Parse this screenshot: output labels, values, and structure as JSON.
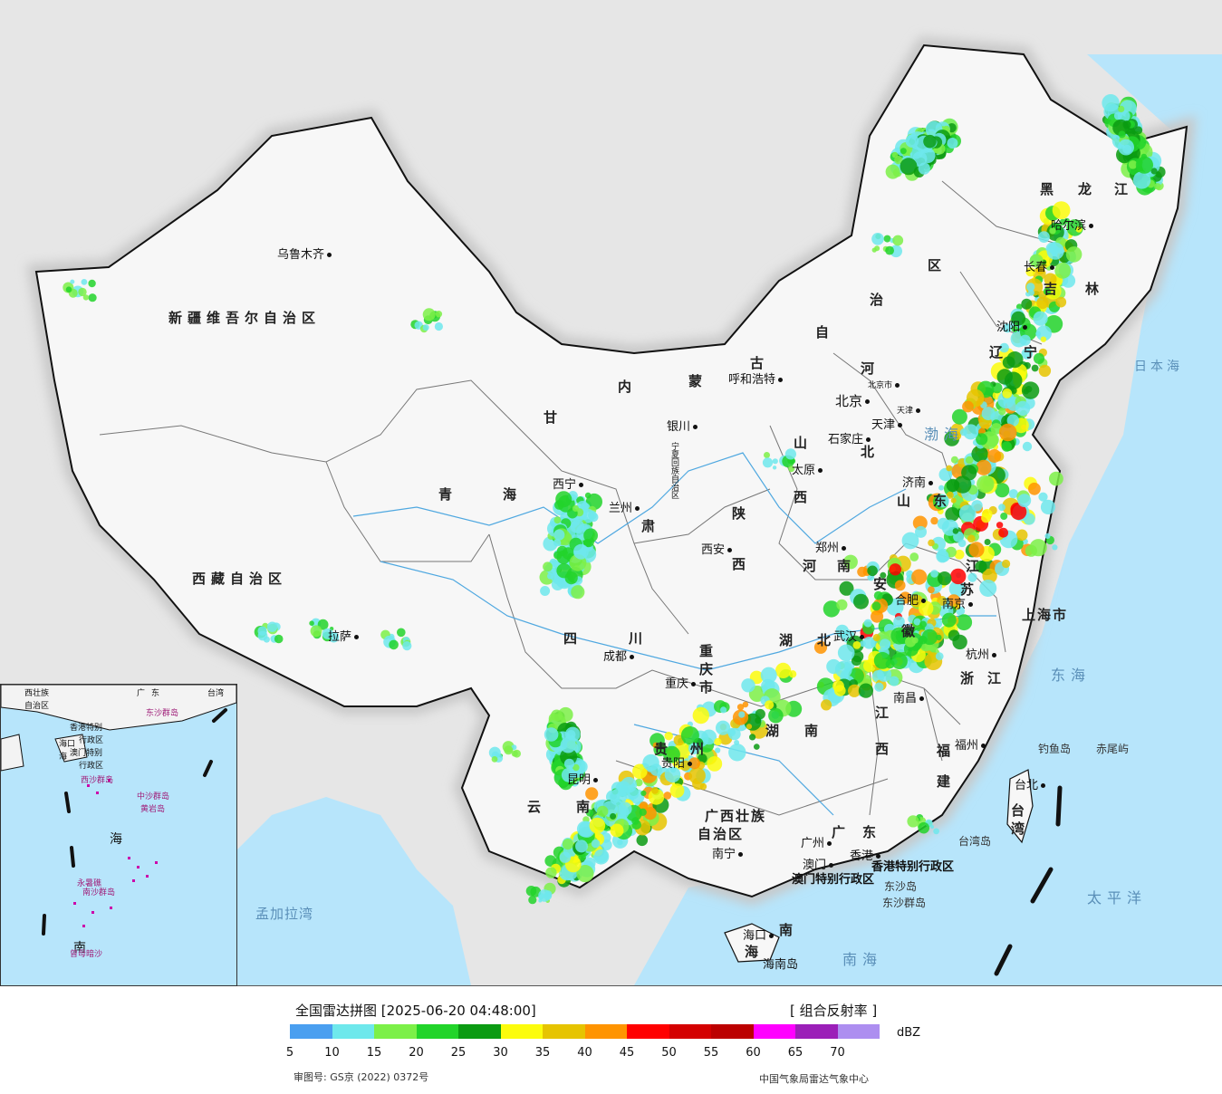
{
  "legend": {
    "title": "全国雷达拼图 [2025-06-20 04:48:00]",
    "product": "[ 组合反射率 ]",
    "unit": "dBZ",
    "approval": "审图号: GS京 (2022) 0372号",
    "agency": "中国气象局雷达气象中心",
    "colors": [
      "#4a9ff0",
      "#6ee8ec",
      "#7cf048",
      "#22d42a",
      "#0b9b12",
      "#fcfc0c",
      "#e6c400",
      "#ff9400",
      "#ff0000",
      "#d40000",
      "#bc0000",
      "#ff00ff",
      "#9b1fb8",
      "#ad8ef0"
    ],
    "ticks": [
      "5",
      "10",
      "15",
      "20",
      "25",
      "30",
      "35",
      "40",
      "45",
      "50",
      "55",
      "60",
      "65",
      "70"
    ]
  },
  "provinces": [
    {
      "name": "新疆维吾尔自治区",
      "id": "xinjiang"
    },
    {
      "name": "西藏自治区",
      "id": "xizang"
    },
    {
      "name": "青",
      "id": "qing"
    },
    {
      "name": "海",
      "id": "hai"
    },
    {
      "name": "甘",
      "id": "gan"
    },
    {
      "name": "肃",
      "id": "su"
    },
    {
      "name": "内",
      "id": "nei"
    },
    {
      "name": "蒙",
      "id": "meng"
    },
    {
      "name": "古",
      "id": "gu"
    },
    {
      "name": "自",
      "id": "zi"
    },
    {
      "name": "治",
      "id": "zhi"
    },
    {
      "name": "区",
      "id": "qu"
    },
    {
      "name": "黑",
      "id": "hei"
    },
    {
      "name": "龙",
      "id": "long"
    },
    {
      "name": "江",
      "id": "jiang"
    },
    {
      "name": "吉",
      "id": "ji"
    },
    {
      "name": "林",
      "id": "lin"
    },
    {
      "name": "辽",
      "id": "liao"
    },
    {
      "name": "宁",
      "id": "ning"
    },
    {
      "name": "河",
      "id": "he"
    },
    {
      "name": "北",
      "id": "bei"
    },
    {
      "name": "山",
      "id": "shan"
    },
    {
      "name": "西",
      "id": "xi"
    },
    {
      "name": "陕",
      "id": "shaan"
    },
    {
      "name": "西",
      "id": "xi2"
    },
    {
      "name": "河",
      "id": "he2"
    },
    {
      "name": "南",
      "id": "nan"
    },
    {
      "name": "山",
      "id": "shan2"
    },
    {
      "name": "东",
      "id": "dong"
    },
    {
      "name": "江",
      "id": "jiang2"
    },
    {
      "name": "苏",
      "id": "su2"
    },
    {
      "name": "安",
      "id": "an"
    },
    {
      "name": "徽",
      "id": "hui"
    },
    {
      "name": "上海市",
      "id": "shanghai"
    },
    {
      "name": "浙",
      "id": "zhe"
    },
    {
      "name": "江",
      "id": "jiang3"
    },
    {
      "name": "湖",
      "id": "hu"
    },
    {
      "name": "北",
      "id": "bei2"
    },
    {
      "name": "四",
      "id": "si"
    },
    {
      "name": "川",
      "id": "chuan"
    },
    {
      "name": "重",
      "id": "chong"
    },
    {
      "name": "庆",
      "id": "qing2"
    },
    {
      "name": "市",
      "id": "shi"
    },
    {
      "name": "湖",
      "id": "hu2"
    },
    {
      "name": "南",
      "id": "nan2"
    },
    {
      "name": "江",
      "id": "jiang4"
    },
    {
      "name": "西",
      "id": "xi3"
    },
    {
      "name": "福",
      "id": "fu"
    },
    {
      "name": "建",
      "id": "jian"
    },
    {
      "name": "贵",
      "id": "gui"
    },
    {
      "name": "州",
      "id": "zhou"
    },
    {
      "name": "云",
      "id": "yun"
    },
    {
      "name": "南",
      "id": "nan3"
    },
    {
      "name": "广西壮族",
      "id": "gx1"
    },
    {
      "name": "自治区",
      "id": "gx2"
    },
    {
      "name": "广",
      "id": "guang"
    },
    {
      "name": "东",
      "id": "dong2"
    },
    {
      "name": "海",
      "id": "hai2"
    },
    {
      "name": "南",
      "id": "nan4"
    },
    {
      "name": "台",
      "id": "tai"
    },
    {
      "name": "湾",
      "id": "wan"
    },
    {
      "name": "宁夏回族自治区",
      "id": "ningxia"
    }
  ],
  "cities": [
    {
      "name": "乌鲁木齐",
      "id": "urumqi"
    },
    {
      "name": "拉萨",
      "id": "lhasa"
    },
    {
      "name": "西宁",
      "id": "xining"
    },
    {
      "name": "兰州",
      "id": "lanzhou"
    },
    {
      "name": "银川",
      "id": "yinchuan"
    },
    {
      "name": "呼和浩特",
      "id": "hohhot"
    },
    {
      "name": "北京",
      "id": "beijing"
    },
    {
      "name": "北京市",
      "id": "beijingshi"
    },
    {
      "name": "天津",
      "id": "tianjin"
    },
    {
      "name": "天津",
      "id": "tianjinshi"
    },
    {
      "name": "石家庄",
      "id": "shijiazhuang"
    },
    {
      "name": "太原",
      "id": "taiyuan"
    },
    {
      "name": "西安",
      "id": "xian"
    },
    {
      "name": "郑州",
      "id": "zhengzhou"
    },
    {
      "name": "济南",
      "id": "jinan"
    },
    {
      "name": "合肥",
      "id": "hefei"
    },
    {
      "name": "南京",
      "id": "nanjing"
    },
    {
      "name": "杭州",
      "id": "hangzhou"
    },
    {
      "name": "武汉",
      "id": "wuhan"
    },
    {
      "name": "成都",
      "id": "chengdu"
    },
    {
      "name": "重庆",
      "id": "chongqing"
    },
    {
      "name": "贵阳",
      "id": "guiyang"
    },
    {
      "name": "昆明",
      "id": "kunming"
    },
    {
      "name": "南宁",
      "id": "nanning"
    },
    {
      "name": "广州",
      "id": "guangzhou"
    },
    {
      "name": "香港",
      "id": "hongkong"
    },
    {
      "name": "澳门",
      "id": "macau"
    },
    {
      "name": "南昌",
      "id": "nanchang"
    },
    {
      "name": "福州",
      "id": "fuzhou"
    },
    {
      "name": "台北",
      "id": "taipei"
    },
    {
      "name": "海口",
      "id": "haikou"
    },
    {
      "name": "沈阳",
      "id": "shenyang"
    },
    {
      "name": "长春",
      "id": "changchun"
    },
    {
      "name": "哈尔滨",
      "id": "harbin"
    }
  ],
  "other_labels": [
    {
      "name": "日本海",
      "id": "japansea"
    },
    {
      "name": "渤海",
      "id": "bohai"
    },
    {
      "name": "东海",
      "id": "eastsea"
    },
    {
      "name": "太平洋",
      "id": "pacific"
    },
    {
      "name": "南海",
      "id": "southsea"
    },
    {
      "name": "孟加拉湾",
      "id": "bengal"
    },
    {
      "name": "钓鱼岛",
      "id": "diaoyu"
    },
    {
      "name": "赤尾屿",
      "id": "chiwei"
    },
    {
      "name": "台湾岛",
      "id": "taiwandao"
    },
    {
      "name": "东沙群岛",
      "id": "dongsha"
    },
    {
      "name": "东沙岛",
      "id": "dongshadao"
    },
    {
      "name": "海南岛",
      "id": "hainandao"
    },
    {
      "name": "香港特别行政区",
      "id": "hksar"
    },
    {
      "name": "澳门特别行政区",
      "id": "macausar"
    }
  ],
  "inset": {
    "labels": [
      {
        "name": "西壮族",
        "id": "i1"
      },
      {
        "name": "自治区",
        "id": "i2"
      },
      {
        "name": "海口",
        "id": "i3"
      },
      {
        "name": "海",
        "id": "i4"
      },
      {
        "name": "南",
        "id": "i5"
      },
      {
        "name": "海",
        "id": "i6"
      },
      {
        "name": "香港特别",
        "id": "i7"
      },
      {
        "name": "行政区",
        "id": "i8"
      },
      {
        "name": "澳门特别",
        "id": "i9"
      },
      {
        "name": "行政区",
        "id": "i10"
      },
      {
        "name": "东沙群岛",
        "id": "i11"
      },
      {
        "name": "西沙群岛",
        "id": "i12"
      },
      {
        "name": "中沙群岛",
        "id": "i13"
      },
      {
        "name": "黄岩岛",
        "id": "i14"
      },
      {
        "name": "南沙群岛",
        "id": "i15"
      },
      {
        "name": "永暑礁",
        "id": "i16"
      },
      {
        "name": "曾母暗沙",
        "id": "i17"
      },
      {
        "name": "台湾",
        "id": "i18"
      },
      {
        "name": "广",
        "id": "i19"
      },
      {
        "name": "东",
        "id": "i20"
      }
    ]
  }
}
